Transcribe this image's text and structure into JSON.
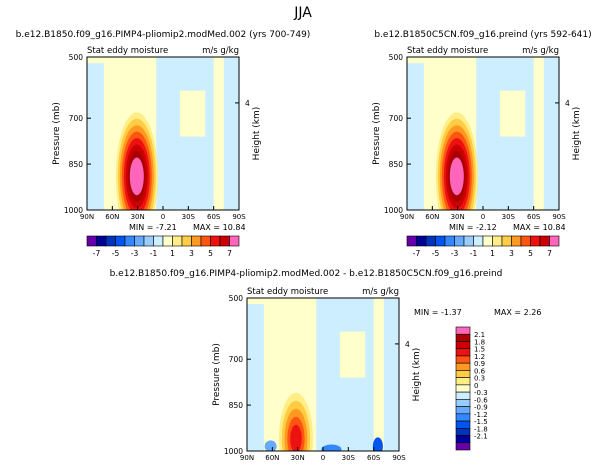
{
  "figure_title": "JJA",
  "colors": {
    "panel_background": "#ffffcc",
    "light_blue": "#cceeff",
    "positive_scale": [
      "#ffffcc",
      "#ffee88",
      "#ffcc44",
      "#ff9922",
      "#ff5511",
      "#ee1111",
      "#cc0000",
      "#aa0000",
      "#ff66bb"
    ],
    "negative_scale": [
      "#cceeff",
      "#99ccff",
      "#66aaff",
      "#3388ff",
      "#0055ee",
      "#0033bb",
      "#000099",
      "#6600aa"
    ]
  },
  "chart_data": [
    {
      "type": "heatmap",
      "title": "b.e12.B1850.f09_g16.PIMP4-pliomip2.modMed.002 (yrs 700-749)",
      "left_subtitle": "Stat eddy moisture",
      "right_subtitle": "m/s g/kg",
      "ylabel": "Pressure (mb)",
      "y2label": "Height (km)",
      "y_ticks": [
        "500",
        "700",
        "850",
        "1000"
      ],
      "y2_ticks": [
        "4"
      ],
      "x_ticks": [
        "90N",
        "60N",
        "30N",
        "0",
        "30S",
        "60S",
        "90S"
      ],
      "min_text": "MIN = -7.21",
      "max_text": "MAX = 10.84",
      "colorbar_labels": [
        "-7",
        "-5",
        "-3",
        "-1",
        "1",
        "3",
        "5",
        "7"
      ],
      "feature": {
        "lat": 31,
        "p": 890,
        "peak": 10.84
      }
    },
    {
      "type": "heatmap",
      "title": "b.e12.B1850C5CN.f09_g16.preind (yrs 592-641)",
      "left_subtitle": "Stat eddy moisture",
      "right_subtitle": "m/s g/kg",
      "ylabel": "Pressure (mb)",
      "y2label": "Height (km)",
      "y_ticks": [
        "500",
        "700",
        "850",
        "1000"
      ],
      "y2_ticks": [
        "4"
      ],
      "x_ticks": [
        "90N",
        "60N",
        "30N",
        "0",
        "30S",
        "60S",
        "90S"
      ],
      "min_text": "MIN = -2.12",
      "max_text": "MAX = 10.84",
      "colorbar_labels": [
        "-7",
        "-5",
        "-3",
        "-1",
        "1",
        "3",
        "5",
        "7"
      ],
      "feature": {
        "lat": 31,
        "p": 890,
        "peak": 10.84
      }
    },
    {
      "type": "heatmap",
      "title": "b.e12.B1850.f09_g16.PIMP4-pliomip2.modMed.002 - b.e12.B1850C5CN.f09_g16.preind",
      "left_subtitle": "Stat eddy moisture",
      "right_subtitle": "m/s g/kg",
      "ylabel": "Pressure (mb)",
      "y2label": "Height (km)",
      "y_ticks": [
        "500",
        "700",
        "850",
        "1000"
      ],
      "y2_ticks": [
        "4"
      ],
      "x_ticks": [
        "90N",
        "60N",
        "30N",
        "0",
        "30S",
        "60S",
        "90S"
      ],
      "min_text": "MIN = -1.37",
      "max_text": "MAX = 2.26",
      "colorbar_labels": [
        "2.1",
        "1.8",
        "1.5",
        "1.2",
        "0.9",
        "0.6",
        "0.3",
        "0",
        "-0.3",
        "-0.6",
        "-0.9",
        "-1.2",
        "-1.5",
        "-1.8",
        "-2.1"
      ],
      "feature": {
        "lat": 32,
        "p": 960,
        "peak": 2.26
      }
    }
  ]
}
